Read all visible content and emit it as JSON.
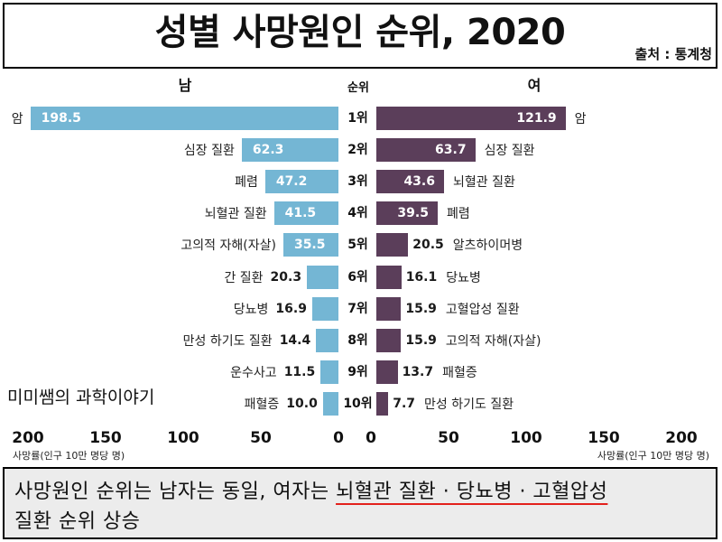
{
  "source": "출처 : 통계청",
  "watermark": "미미쌤의 과학이야기",
  "summary": {
    "text_before": "사망원인 순위는 남자는 동일, 여자는 ",
    "text_highlight": "뇌혈관 질환 · 당뇨병 · 고혈압성",
    "text_after": "질환 순위 상승"
  },
  "colors": {
    "male_bar": "#74b6d4",
    "female_bar": "#5b3e5a",
    "highlight_underline": "#e3211c"
  },
  "chart_data": {
    "type": "bar",
    "orientation": "horizontal",
    "mirrored": true,
    "title": "성별 사망원인 순위, 2020",
    "rank_header": "순위",
    "ranks": [
      "1위",
      "2위",
      "3위",
      "4위",
      "5위",
      "6위",
      "7위",
      "8위",
      "9위",
      "10위"
    ],
    "series": [
      {
        "name": "남",
        "categories": [
          "암",
          "심장 질환",
          "폐렴",
          "뇌혈관 질환",
          "고의적 자해(자살)",
          "간 질환",
          "당뇨병",
          "만성 하기도 질환",
          "운수사고",
          "패혈증"
        ],
        "values": [
          198.5,
          62.3,
          47.2,
          41.5,
          35.5,
          20.3,
          16.9,
          14.4,
          11.5,
          10.0
        ]
      },
      {
        "name": "여",
        "categories": [
          "암",
          "심장 질환",
          "뇌혈관 질환",
          "폐렴",
          "알츠하이머병",
          "당뇨병",
          "고혈압성 질환",
          "고의적 자해(자살)",
          "패혈증",
          "만성 하기도 질환"
        ],
        "values": [
          121.9,
          63.7,
          43.6,
          39.5,
          20.5,
          16.1,
          15.9,
          15.9,
          13.7,
          7.7
        ]
      }
    ],
    "xlabel": "사망률(인구 10만 명당 명)",
    "xlim": [
      0,
      200
    ],
    "x_ticks": [
      0,
      50,
      100,
      150,
      200
    ],
    "grid": false
  }
}
